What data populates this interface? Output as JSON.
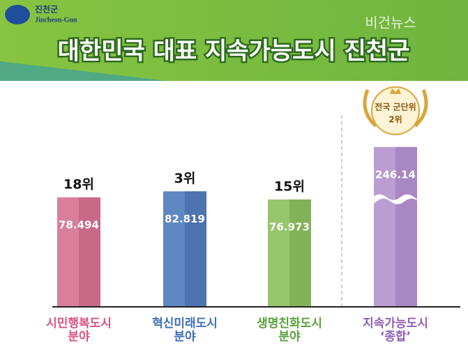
{
  "logo": {
    "name": "진천군",
    "name_en": "Jincheon-Gun"
  },
  "watermark": "비건뉴스",
  "chart_data": {
    "type": "bar",
    "title": "대한민국 대표 지속가능도시 진천군",
    "categories": [
      "시민행복도시\n분야",
      "혁신미래도시\n분야",
      "생명친화도시\n분야",
      "지속가능도시\n‘종합’"
    ],
    "values": [
      78.494,
      82.819,
      76.973,
      246.14
    ],
    "rank_labels": [
      "18위",
      "3위",
      "15위",
      null
    ],
    "badge": {
      "line1": "전국 군단위",
      "line2": "2위"
    },
    "colors": [
      "#d97f9b",
      "#5f87c4",
      "#96c66c",
      "#bb9dd3"
    ],
    "shade_colors": [
      "#c86a87",
      "#4d73b1",
      "#82b257",
      "#a887c2"
    ],
    "label_colors": [
      "#d9537e",
      "#3f6fb8",
      "#5aa03a",
      "#8f5fb8"
    ]
  }
}
